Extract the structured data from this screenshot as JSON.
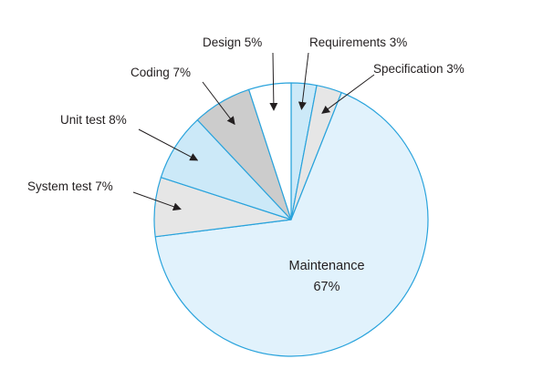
{
  "chart_data": {
    "type": "pie",
    "title": "",
    "slices": [
      {
        "name": "Requirements",
        "value": 3,
        "label": "Requirements 3%",
        "color": "#cce9f8"
      },
      {
        "name": "Specification",
        "value": 3,
        "label": "Specification 3%",
        "color": "#e6e6e6"
      },
      {
        "name": "Maintenance",
        "value": 67,
        "label": "Maintenance",
        "value_label": "67%",
        "color": "#e1f2fc"
      },
      {
        "name": "System test",
        "value": 7,
        "label": "System test 7%",
        "color": "#e6e6e6"
      },
      {
        "name": "Unit test",
        "value": 8,
        "label": "Unit test 8%",
        "color": "#cce9f8"
      },
      {
        "name": "Coding",
        "value": 7,
        "label": "Coding 7%",
        "color": "#cccccc"
      },
      {
        "name": "Design",
        "value": 5,
        "label": "Design 5%",
        "color": "#ffffff"
      }
    ],
    "edge_color": "#29a3dc"
  }
}
